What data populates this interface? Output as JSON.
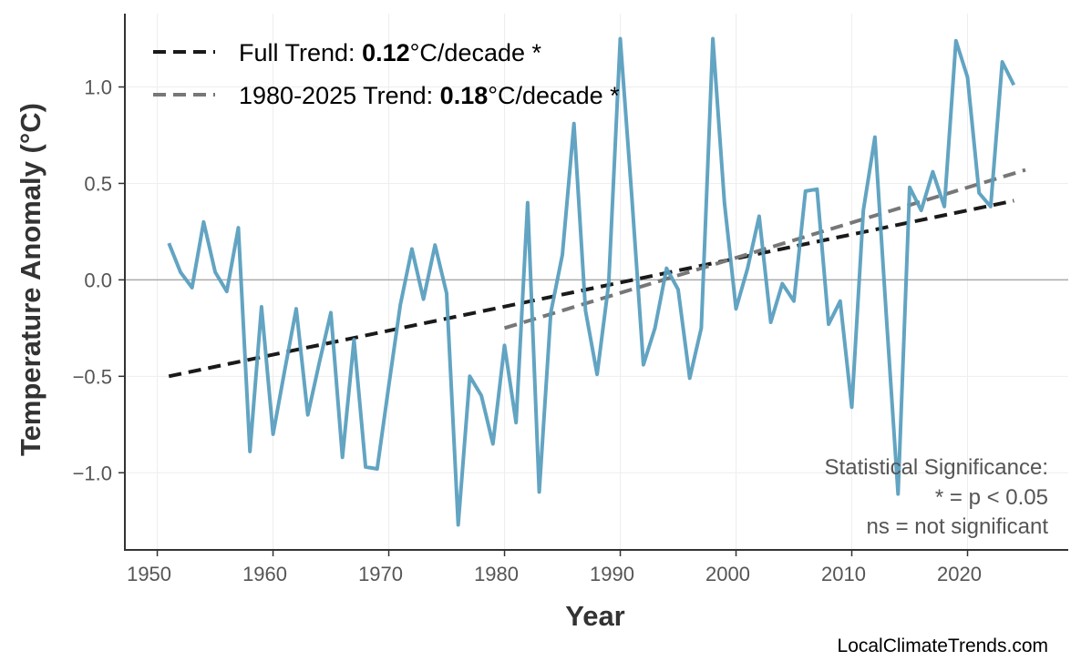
{
  "chart_data": {
    "type": "line",
    "title": "",
    "xlabel": "Year",
    "ylabel": "Temperature Anomaly (°C)",
    "xlim": [
      1947.2,
      2028.7
    ],
    "ylim": [
      -1.4,
      1.38
    ],
    "xticks": [
      1950,
      1960,
      1970,
      1980,
      1990,
      2000,
      2010,
      2020
    ],
    "yticks": [
      -1.0,
      -0.5,
      0.0,
      0.5,
      1.0
    ],
    "ytick_labels": [
      "−1.0",
      "−0.5",
      "0.0",
      "0.5",
      "1.0"
    ],
    "grid": true,
    "zero_line": true,
    "series": [
      {
        "color": "#5a9fbf",
        "x": [
          1951,
          1952,
          1953,
          1954,
          1955,
          1956,
          1957,
          1958,
          1959,
          1960,
          1961,
          1962,
          1963,
          1964,
          1965,
          1966,
          1967,
          1968,
          1969,
          1970,
          1971,
          1972,
          1973,
          1974,
          1975,
          1976,
          1977,
          1978,
          1979,
          1980,
          1981,
          1982,
          1983,
          1984,
          1985,
          1986,
          1987,
          1988,
          1989,
          1990,
          1991,
          1992,
          1993,
          1994,
          1995,
          1996,
          1997,
          1998,
          1999,
          2000,
          2001,
          2002,
          2003,
          2004,
          2005,
          2006,
          2007,
          2008,
          2009,
          2010,
          2011,
          2012,
          2013,
          2014,
          2015,
          2016,
          2017,
          2018,
          2019,
          2020,
          2021,
          2022,
          2023,
          2024
        ],
        "y": [
          0.19,
          0.04,
          -0.04,
          0.3,
          0.04,
          -0.06,
          0.27,
          -0.89,
          -0.14,
          -0.8,
          -0.47,
          -0.15,
          -0.7,
          -0.43,
          -0.17,
          -0.92,
          -0.31,
          -0.97,
          -0.98,
          -0.55,
          -0.13,
          0.16,
          -0.1,
          0.18,
          -0.07,
          -1.27,
          -0.5,
          -0.6,
          -0.85,
          -0.34,
          -0.74,
          0.4,
          -1.1,
          -0.17,
          0.13,
          0.81,
          -0.16,
          -0.49,
          -0.02,
          1.25,
          0.43,
          -0.44,
          -0.25,
          0.06,
          -0.05,
          -0.51,
          -0.25,
          1.25,
          0.4,
          -0.15,
          0.06,
          0.33,
          -0.22,
          -0.02,
          -0.11,
          0.46,
          0.47,
          -0.23,
          -0.11,
          -0.66,
          0.36,
          0.74,
          -0.2,
          -1.11,
          0.48,
          0.36,
          0.56,
          0.38,
          1.24,
          1.05,
          0.45,
          0.38,
          1.13,
          1.01
        ]
      }
    ],
    "trends": [
      {
        "label_prefix": "Full Trend: ",
        "value": "0.12",
        "unit": "°C/decade",
        "sig": " *",
        "color": "#1a1a1a",
        "x": [
          1951,
          2024
        ],
        "y": [
          -0.5,
          0.41
        ]
      },
      {
        "label_prefix": "1980-2025 Trend: ",
        "value": "0.18",
        "unit": "°C/decade",
        "sig": " *",
        "color": "#777777",
        "x": [
          1980,
          2025
        ],
        "y": [
          -0.25,
          0.57
        ]
      }
    ],
    "legend_placement": "top-left",
    "annotations": [
      "Statistical Significance:",
      "* = p < 0.05",
      "ns = not significant"
    ]
  },
  "watermark": "LocalClimateTrends.com"
}
